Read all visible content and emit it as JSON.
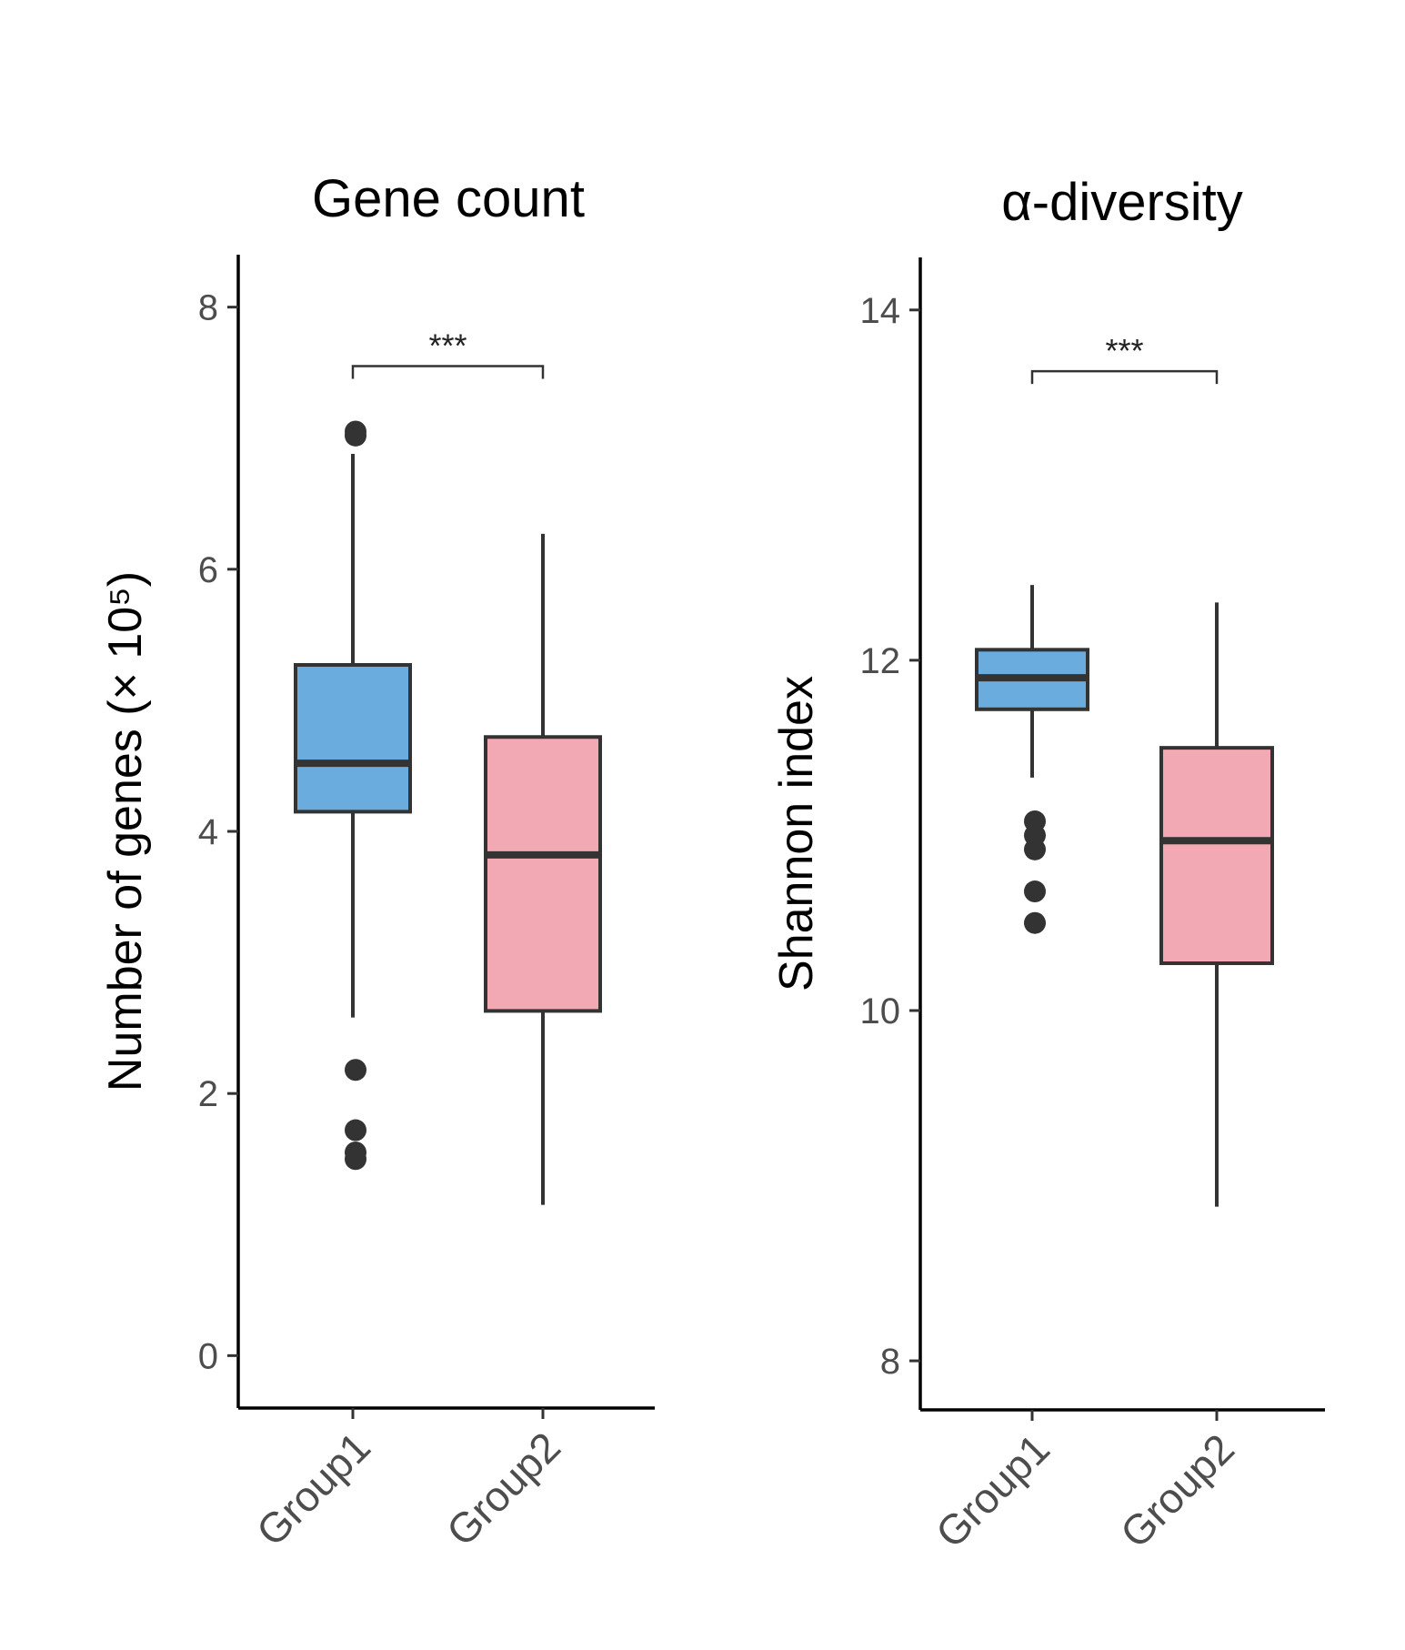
{
  "chart_data": [
    {
      "type": "boxplot",
      "title": "Gene count",
      "ylabel": "Number of genes (× 10⁵)",
      "ylim": [
        -0.4,
        8.4
      ],
      "yticks": [
        0,
        2,
        4,
        6,
        8
      ],
      "yticklabels": [
        "0",
        "2",
        "4",
        "6",
        "8"
      ],
      "categories": [
        "Group1",
        "Group2"
      ],
      "grid": false,
      "legend": "none",
      "boxes": [
        {
          "category": "Group1",
          "whisker_low": 2.58,
          "q1": 4.15,
          "median": 4.52,
          "q3": 5.27,
          "whisker_high": 6.88,
          "outliers": [
            7.05,
            7.02,
            2.18,
            1.72,
            1.55,
            1.5
          ],
          "color": "#69acdd"
        },
        {
          "category": "Group2",
          "whisker_low": 1.15,
          "q1": 2.63,
          "median": 3.82,
          "q3": 4.72,
          "whisker_high": 6.27,
          "outliers": [],
          "color": "#f2a9b3"
        }
      ],
      "significance": {
        "from": "Group1",
        "to": "Group2",
        "y": 7.55,
        "label": "***"
      }
    },
    {
      "type": "boxplot",
      "title": "α-diversity",
      "ylabel": "Shannon index",
      "ylim": [
        7.72,
        14.3
      ],
      "yticks": [
        8,
        10,
        12,
        14
      ],
      "yticklabels": [
        "8",
        "10",
        "12",
        "14"
      ],
      "categories": [
        "Group1",
        "Group2"
      ],
      "grid": false,
      "legend": "none",
      "boxes": [
        {
          "category": "Group1",
          "whisker_low": 11.33,
          "q1": 11.72,
          "median": 11.9,
          "q3": 12.06,
          "whisker_high": 12.43,
          "outliers": [
            11.08,
            11.0,
            10.92,
            10.68,
            10.5
          ],
          "color": "#69acdd"
        },
        {
          "category": "Group2",
          "whisker_low": 8.88,
          "q1": 10.27,
          "median": 10.97,
          "q3": 11.5,
          "whisker_high": 12.33,
          "outliers": [],
          "color": "#f2a9b3"
        }
      ],
      "significance": {
        "from": "Group1",
        "to": "Group2",
        "y": 13.65,
        "label": "***"
      }
    }
  ]
}
